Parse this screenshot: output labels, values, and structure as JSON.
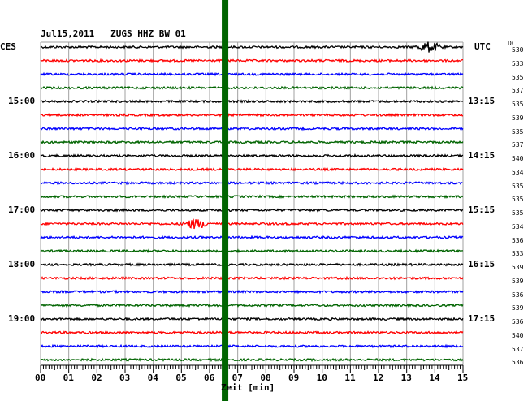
{
  "header": {
    "title": "Jul15,2011   ZUGS HHZ BW 01",
    "left_tz": "CES",
    "right_tz": "UTC",
    "dc_label": "DC"
  },
  "chart_data": {
    "type": "line",
    "title": "Jul15,2011   ZUGS HHZ BW 01",
    "xlabel": "Zeit [min]",
    "x_range": [
      0,
      15
    ],
    "x_ticks": [
      "00",
      "01",
      "02",
      "03",
      "04",
      "05",
      "06",
      "07",
      "08",
      "09",
      "10",
      "11",
      "12",
      "13",
      "14",
      "15"
    ],
    "trace_colors": [
      "#000000",
      "#ff0000",
      "#0000ff",
      "#006400"
    ],
    "traces_per_hour": 4,
    "trace_count": 24,
    "left_hour_labels": [
      {
        "trace": 4,
        "text": "15:00"
      },
      {
        "trace": 8,
        "text": "16:00"
      },
      {
        "trace": 12,
        "text": "17:00"
      },
      {
        "trace": 16,
        "text": "18:00"
      },
      {
        "trace": 20,
        "text": "19:00"
      }
    ],
    "right_time_labels": [
      {
        "trace": 4,
        "text": "13:15"
      },
      {
        "trace": 8,
        "text": "14:15"
      },
      {
        "trace": 12,
        "text": "15:15"
      },
      {
        "trace": 16,
        "text": "16:15"
      },
      {
        "trace": 20,
        "text": "17:15"
      }
    ],
    "dc_values": [
      "530",
      "533",
      "535",
      "537",
      "535",
      "539",
      "535",
      "537",
      "540",
      "534",
      "535",
      "535",
      "535",
      "534",
      "536",
      "533",
      "539",
      "539",
      "536",
      "539",
      "536",
      "540",
      "537",
      "536"
    ],
    "events": [
      {
        "trace": 0,
        "minute": 13.8,
        "label": "burst"
      },
      {
        "trace": 13,
        "minute": 5.5,
        "label": "burst"
      }
    ],
    "marker": {
      "minute": 6.55,
      "color": "#006400"
    },
    "grid": true
  }
}
